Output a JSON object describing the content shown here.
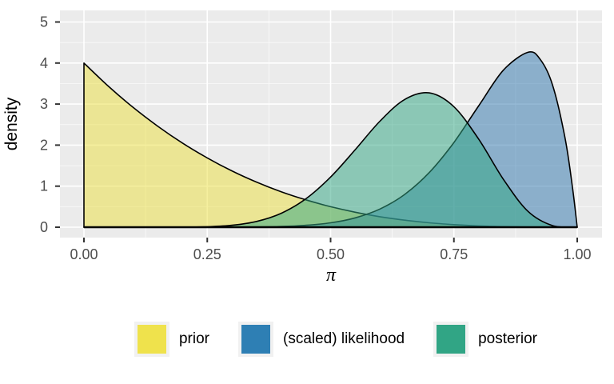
{
  "chart_data": {
    "type": "area",
    "title": "",
    "xlabel": "π",
    "ylabel": "density",
    "xlim": [
      0,
      1
    ],
    "ylim": [
      0,
      5
    ],
    "grid": true,
    "legend_position": "bottom",
    "x_ticks": [
      {
        "value": 0.0,
        "label": "0.00"
      },
      {
        "value": 0.25,
        "label": "0.25"
      },
      {
        "value": 0.5,
        "label": "0.50"
      },
      {
        "value": 0.75,
        "label": "0.75"
      },
      {
        "value": 1.0,
        "label": "1.00"
      }
    ],
    "y_ticks": [
      {
        "value": 0,
        "label": "0"
      },
      {
        "value": 1,
        "label": "1"
      },
      {
        "value": 2,
        "label": "2"
      },
      {
        "value": 3,
        "label": "3"
      },
      {
        "value": 4,
        "label": "4"
      },
      {
        "value": 5,
        "label": "5"
      }
    ],
    "colors": {
      "panel_bg": "#ebebeb",
      "grid_major": "#ffffff",
      "grid_minor": "#ffffff",
      "axis_text": "#4d4d4d",
      "tick_mark": "#333333",
      "outline": "#000000"
    },
    "fill_opacity": 0.52,
    "series": [
      {
        "name": "prior",
        "color": "#ece045",
        "legend_color": "#efe24c",
        "x": [
          0,
          0.05,
          0.1,
          0.15,
          0.2,
          0.25,
          0.3,
          0.35,
          0.4,
          0.45,
          0.5,
          0.55,
          0.6,
          0.65,
          0.7,
          0.75,
          0.8,
          0.85,
          0.9,
          0.95,
          1
        ],
        "y": [
          4,
          3.43,
          2.916,
          2.457,
          2.048,
          1.688,
          1.372,
          1.099,
          0.864,
          0.666,
          0.5,
          0.365,
          0.256,
          0.172,
          0.108,
          0.063,
          0.032,
          0.014,
          0.004,
          0.001,
          0
        ]
      },
      {
        "name": "(scaled) likelihood",
        "color": "#3379af",
        "legend_color": "#2e7fb4",
        "x": [
          0,
          0.1,
          0.2,
          0.25,
          0.3,
          0.35,
          0.4,
          0.45,
          0.5,
          0.55,
          0.6,
          0.65,
          0.7,
          0.75,
          0.8,
          0.85,
          0.9,
          0.925,
          0.95,
          0.975,
          0.99,
          1
        ],
        "y": [
          0,
          0,
          0,
          0.0003,
          0.002,
          0.006,
          0.017,
          0.046,
          0.107,
          0.228,
          0.443,
          0.797,
          1.332,
          2.065,
          2.953,
          3.822,
          4.262,
          4.09,
          3.466,
          2.19,
          1.005,
          0
        ]
      },
      {
        "name": "posterior",
        "color": "#34a784",
        "legend_color": "#31a585",
        "x": [
          0,
          0.1,
          0.2,
          0.25,
          0.3,
          0.35,
          0.4,
          0.45,
          0.5,
          0.55,
          0.6,
          0.65,
          0.7,
          0.75,
          0.8,
          0.85,
          0.9,
          0.95,
          1
        ],
        "y": [
          0,
          0,
          0.002,
          0.012,
          0.047,
          0.141,
          0.34,
          0.693,
          1.222,
          1.89,
          2.582,
          3.111,
          3.272,
          2.936,
          2.15,
          1.174,
          0.388,
          0.039,
          0
        ]
      }
    ]
  }
}
